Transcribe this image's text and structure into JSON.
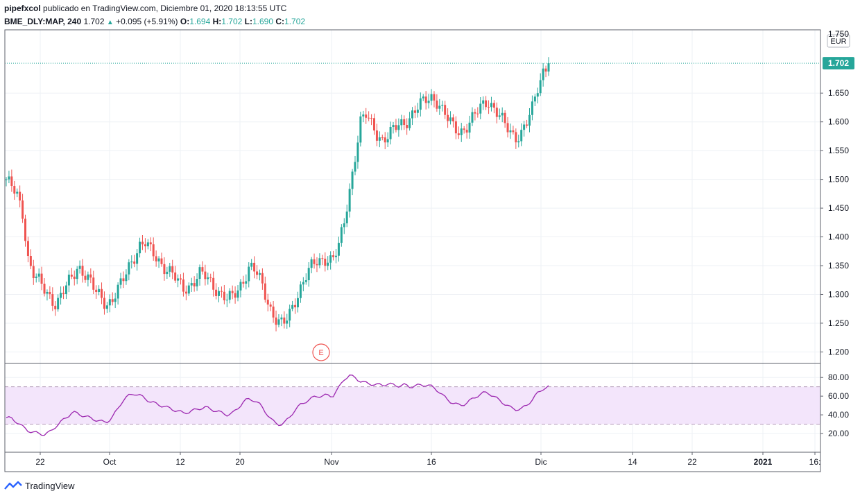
{
  "header": {
    "author": "pipefxcol",
    "published": " publicado en TradingView.com, Diciembre 01, 2020 18:13:55 UTC",
    "symbol": "BME_DLY:MAP, 240",
    "last": "1.702",
    "change": "+0.095 (+5.91%)",
    "o_label": "O:",
    "o_val": "1.694",
    "h_label": "H:",
    "h_val": "1.702",
    "l_label": "L:",
    "l_val": "1.690",
    "c_label": "C:",
    "c_val": "1.702"
  },
  "footer": {
    "brand": "TradingView"
  },
  "colors": {
    "up": "#26a69a",
    "down": "#ef5350",
    "rsi": "#9c27b0",
    "rsi_band": "#f3e5fb",
    "grid": "#eef1f5",
    "price_label": "#26a69a"
  },
  "chart_data": {
    "type": "candlestick",
    "currency": "EUR",
    "last_price": 1.702,
    "last_price_label": "1.702",
    "price_axis": {
      "range": [
        1.18,
        1.76
      ],
      "ticks": [
        "1.200",
        "1.250",
        "1.300",
        "1.350",
        "1.400",
        "1.450",
        "1.500",
        "1.550",
        "1.600",
        "1.650"
      ],
      "top_tick_partial": "1.750"
    },
    "rsi_axis": {
      "range": [
        0,
        95
      ],
      "ticks": [
        "20.00",
        "40.00",
        "60.00",
        "80.00"
      ],
      "band": [
        30,
        70
      ]
    },
    "x_axis": {
      "ticks": [
        "22",
        "Oct",
        "12",
        "20",
        "Nov",
        "16",
        "Dic",
        "14",
        "22",
        "2021",
        "16:"
      ]
    },
    "event_marker": "E",
    "price_path": [
      1.5,
      1.485,
      1.47,
      1.44,
      1.36,
      1.335,
      1.32,
      1.305,
      1.295,
      1.285,
      1.3,
      1.315,
      1.33,
      1.35,
      1.34,
      1.325,
      1.305,
      1.295,
      1.285,
      1.29,
      1.305,
      1.32,
      1.345,
      1.365,
      1.385,
      1.39,
      1.375,
      1.365,
      1.355,
      1.345,
      1.335,
      1.32,
      1.31,
      1.315,
      1.325,
      1.335,
      1.33,
      1.32,
      1.31,
      1.3,
      1.29,
      1.295,
      1.31,
      1.33,
      1.35,
      1.34,
      1.32,
      1.295,
      1.27,
      1.255,
      1.245,
      1.26,
      1.285,
      1.31,
      1.33,
      1.345,
      1.355,
      1.36,
      1.365,
      1.36,
      1.38,
      1.42,
      1.48,
      1.54,
      1.6,
      1.61,
      1.595,
      1.58,
      1.57,
      1.575,
      1.585,
      1.595,
      1.6,
      1.61,
      1.62,
      1.63,
      1.64,
      1.645,
      1.635,
      1.615,
      1.6,
      1.59,
      1.585,
      1.59,
      1.6,
      1.615,
      1.63,
      1.64,
      1.625,
      1.61,
      1.595,
      1.585,
      1.575,
      1.58,
      1.595,
      1.62,
      1.66,
      1.69,
      1.702
    ],
    "rsi_path": [
      37,
      36,
      32,
      27,
      23,
      21,
      20,
      19,
      22,
      28,
      33,
      38,
      43,
      41,
      39,
      37,
      35,
      33,
      32,
      36,
      45,
      55,
      60,
      63,
      61,
      58,
      54,
      52,
      50,
      48,
      46,
      44,
      42,
      43,
      45,
      47,
      48,
      46,
      44,
      42,
      40,
      42,
      48,
      55,
      57,
      55,
      50,
      42,
      34,
      30,
      30,
      36,
      44,
      50,
      54,
      57,
      60,
      60,
      61,
      60,
      68,
      78,
      82,
      80,
      76,
      74,
      73,
      72,
      72,
      73,
      72,
      71,
      72,
      70,
      71,
      72,
      72,
      70,
      66,
      60,
      55,
      52,
      50,
      52,
      56,
      60,
      63,
      64,
      60,
      56,
      52,
      48,
      46,
      46,
      50,
      56,
      63,
      68,
      70
    ]
  }
}
